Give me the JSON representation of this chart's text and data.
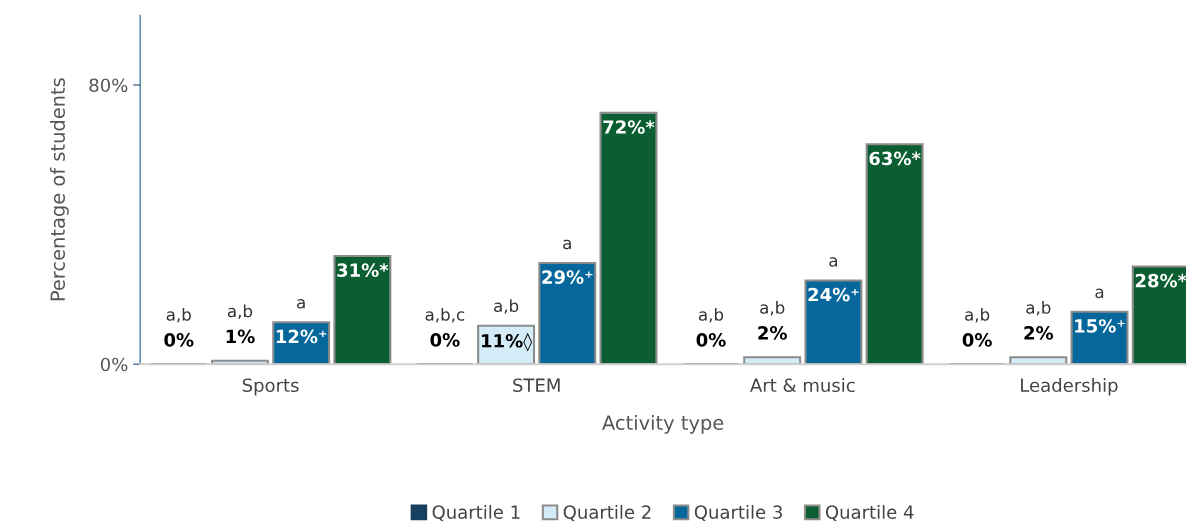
{
  "chart_data": {
    "type": "bar",
    "categories": [
      "Sports",
      "STEM",
      "Art & music",
      "Leadership"
    ],
    "xlabel": "Activity type",
    "ylabel": "Percentage of students",
    "ylim": [
      0,
      100
    ],
    "yticks": [
      {
        "value": 0,
        "label": "0%"
      },
      {
        "value": 80,
        "label": "80%"
      }
    ],
    "grid": false,
    "legend": "bottom",
    "series": [
      {
        "name": "Quartile 1",
        "color": "#173f5f",
        "values": [
          0,
          0,
          0,
          0
        ],
        "value_labels": [
          "0%",
          "0%",
          "0%",
          "0%"
        ]
      },
      {
        "name": "Quartile 2",
        "color": "#d3ecf8",
        "values": [
          1,
          11,
          2,
          2
        ],
        "value_labels": [
          "1%",
          "11%◊",
          "2%",
          "2%"
        ]
      },
      {
        "name": "Quartile 3",
        "color": "#05679c",
        "values": [
          12,
          29,
          24,
          15
        ],
        "value_labels": [
          "12%⁺",
          "29%⁺",
          "24%⁺",
          "15%⁺"
        ]
      },
      {
        "name": "Quartile 4",
        "color": "#0b5e31",
        "values": [
          31,
          72,
          63,
          28
        ],
        "value_labels": [
          "31%*",
          "72%*",
          "63%*",
          "28%*"
        ]
      }
    ],
    "annotations": [
      "a,b",
      "a,b",
      "a",
      "a,b,c",
      "a,b",
      "a",
      "a,b",
      "a,b",
      "a",
      "a,b",
      "a,b",
      "a"
    ]
  }
}
